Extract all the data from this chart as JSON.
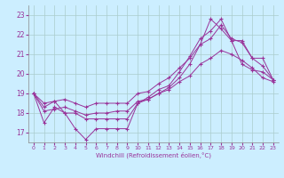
{
  "xlabel": "Windchill (Refroidissement éolien,°C)",
  "background_color": "#cceeff",
  "line_color": "#993399",
  "grid_color": "#aacccc",
  "xlim": [
    -0.5,
    23.5
  ],
  "ylim": [
    16.5,
    23.5
  ],
  "xticks": [
    0,
    1,
    2,
    3,
    4,
    5,
    6,
    7,
    8,
    9,
    10,
    11,
    12,
    13,
    14,
    15,
    16,
    17,
    18,
    19,
    20,
    21,
    22,
    23
  ],
  "yticks": [
    17,
    18,
    19,
    20,
    21,
    22,
    23
  ],
  "line1_x": [
    0,
    1,
    2,
    3,
    4,
    5,
    6,
    7,
    8,
    9,
    10,
    11,
    12,
    13,
    14,
    15,
    16,
    17,
    18,
    19,
    20,
    21,
    22,
    23
  ],
  "line1_y": [
    19.0,
    17.5,
    18.3,
    18.0,
    17.2,
    16.65,
    17.2,
    17.2,
    17.2,
    17.2,
    18.5,
    18.8,
    19.2,
    19.4,
    20.1,
    20.9,
    21.8,
    22.2,
    22.8,
    21.7,
    20.5,
    20.2,
    20.1,
    19.7
  ],
  "line2_x": [
    0,
    1,
    2,
    3,
    4,
    5,
    6,
    7,
    8,
    9,
    10,
    11,
    12,
    13,
    14,
    15,
    16,
    17,
    18,
    19,
    20,
    21,
    22,
    23
  ],
  "line2_y": [
    19.0,
    18.3,
    18.6,
    18.0,
    18.0,
    17.7,
    17.7,
    17.7,
    17.7,
    17.7,
    18.5,
    18.7,
    19.0,
    19.3,
    19.8,
    20.5,
    21.5,
    22.8,
    22.3,
    21.7,
    21.7,
    20.8,
    20.8,
    19.7
  ],
  "line3_x": [
    0,
    1,
    2,
    3,
    4,
    5,
    6,
    7,
    8,
    9,
    10,
    11,
    12,
    13,
    14,
    15,
    16,
    17,
    18,
    19,
    20,
    21,
    22,
    23
  ],
  "line3_y": [
    19.0,
    18.5,
    18.6,
    18.7,
    18.5,
    18.3,
    18.5,
    18.5,
    18.5,
    18.5,
    19.0,
    19.1,
    19.5,
    19.8,
    20.3,
    20.8,
    21.5,
    21.8,
    22.5,
    21.8,
    21.6,
    20.8,
    20.4,
    19.7
  ],
  "line4_x": [
    0,
    1,
    2,
    3,
    4,
    5,
    6,
    7,
    8,
    9,
    10,
    11,
    12,
    13,
    14,
    15,
    16,
    17,
    18,
    19,
    20,
    21,
    22,
    23
  ],
  "line4_y": [
    19.0,
    18.1,
    18.2,
    18.3,
    18.1,
    17.9,
    18.0,
    18.0,
    18.1,
    18.1,
    18.6,
    18.7,
    19.0,
    19.2,
    19.6,
    19.9,
    20.5,
    20.8,
    21.2,
    21.0,
    20.7,
    20.3,
    19.8,
    19.6
  ]
}
